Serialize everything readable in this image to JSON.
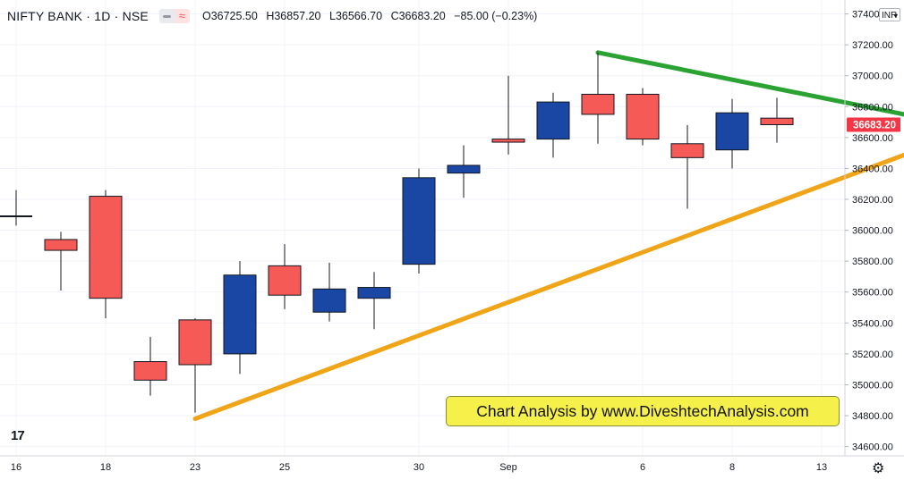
{
  "header": {
    "symbol": "NIFTY BANK · 1D · NSE",
    "ohlc": {
      "o_label": "O",
      "o": "36725.50",
      "h_label": "H",
      "h": "36857.20",
      "l_label": "L",
      "l": "36566.70",
      "c_label": "C",
      "c": "36683.20",
      "change": "−85.00 (−0.23%)"
    }
  },
  "currency": "INR",
  "watermark_text": "Chart Analysis by www.DiveshtechAnalysis.com",
  "logo_text": "17",
  "colors": {
    "up": "#1a47a3",
    "down": "#f55a57",
    "wick": "#131722",
    "green_line": "#2ba333",
    "orange_line": "#f0a519",
    "last_price_bg": "#f23645"
  },
  "chart_data": {
    "type": "candlestick",
    "x_ticks": [
      "16",
      "18",
      "23",
      "25",
      "30",
      "Sep",
      "6",
      "8",
      "13"
    ],
    "y_ticks": [
      "34600.00",
      "34800.00",
      "35000.00",
      "35200.00",
      "35400.00",
      "35600.00",
      "35800.00",
      "36000.00",
      "36200.00",
      "36400.00",
      "36600.00",
      "36800.00",
      "37000.00",
      "37200.00",
      "37400.00"
    ],
    "ylim": [
      34540,
      37490
    ],
    "last_price": "36683.20",
    "candles": [
      {
        "o": 36090,
        "h": 36260,
        "l": 36030,
        "c": 36090
      },
      {
        "o": 35940,
        "h": 35990,
        "l": 35610,
        "c": 35870
      },
      {
        "o": 36220,
        "h": 36260,
        "l": 35430,
        "c": 35560
      },
      {
        "o": 35150,
        "h": 35310,
        "l": 34930,
        "c": 35030
      },
      {
        "o": 35420,
        "h": 35430,
        "l": 34820,
        "c": 35130
      },
      {
        "o": 35200,
        "h": 35800,
        "l": 35070,
        "c": 35710
      },
      {
        "o": 35770,
        "h": 35910,
        "l": 35490,
        "c": 35580
      },
      {
        "o": 35470,
        "h": 35790,
        "l": 35410,
        "c": 35620
      },
      {
        "o": 35560,
        "h": 35730,
        "l": 35360,
        "c": 35630
      },
      {
        "o": 35780,
        "h": 36400,
        "l": 35720,
        "c": 36340
      },
      {
        "o": 36370,
        "h": 36550,
        "l": 36210,
        "c": 36420
      },
      {
        "o": 36590,
        "h": 37000,
        "l": 36490,
        "c": 36570
      },
      {
        "o": 36590,
        "h": 36890,
        "l": 36470,
        "c": 36830
      },
      {
        "o": 36880,
        "h": 37150,
        "l": 36560,
        "c": 36750
      },
      {
        "o": 36880,
        "h": 36920,
        "l": 36550,
        "c": 36590
      },
      {
        "o": 36560,
        "h": 36680,
        "l": 36140,
        "c": 36470
      },
      {
        "o": 36520,
        "h": 36850,
        "l": 36400,
        "c": 36760
      },
      {
        "o": 36725.5,
        "h": 36857.2,
        "l": 36566.7,
        "c": 36683.2
      }
    ],
    "trendlines": [
      {
        "name": "resistance",
        "color": "#2ba333",
        "from": {
          "bar": 13,
          "price": 37150
        },
        "to": {
          "bar": 20.7,
          "price": 36700
        }
      },
      {
        "name": "support",
        "color": "#f0a519",
        "from": {
          "bar": 4,
          "price": 34780
        },
        "to": {
          "bar": 20.8,
          "price": 36590
        }
      }
    ]
  }
}
